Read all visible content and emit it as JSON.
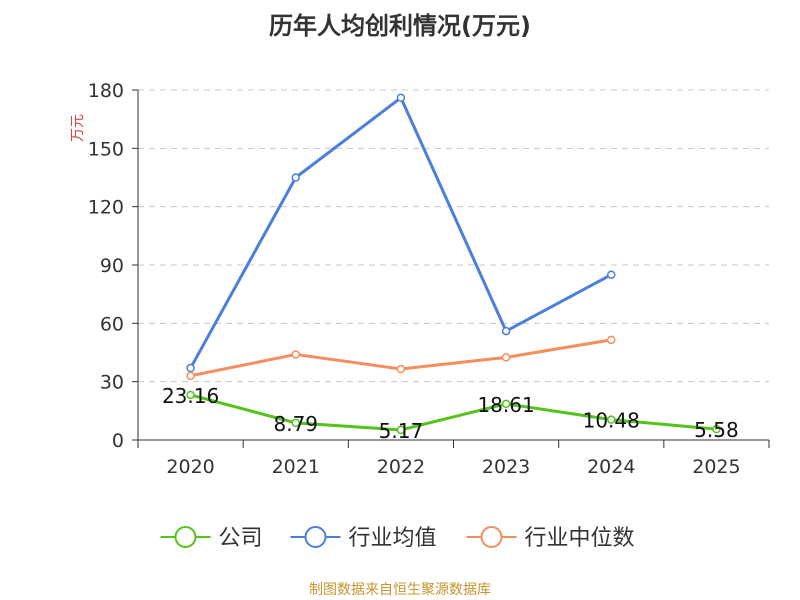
{
  "chart_data": {
    "type": "line",
    "title": "历年人均创利情况(万元)",
    "ylabel": "万元",
    "categories": [
      "2020",
      "2021",
      "2022",
      "2023",
      "2024",
      "2025"
    ],
    "ylim": [
      0,
      180
    ],
    "yticks": [
      0,
      30,
      60,
      90,
      120,
      150,
      180
    ],
    "grid": true,
    "legend_position": "bottom",
    "series": [
      {
        "name": "公司",
        "color": "#52c41a",
        "values": [
          23.16,
          8.79,
          5.17,
          18.61,
          10.48,
          5.58
        ],
        "labels": [
          "23.16",
          "8.79",
          "5.17",
          "18.61",
          "10.48",
          "5.58"
        ]
      },
      {
        "name": "行业均值",
        "color": "#4a7fdb",
        "values": [
          37,
          135,
          176,
          56,
          85,
          null
        ]
      },
      {
        "name": "行业中位数",
        "color": "#f58d5c",
        "values": [
          33,
          44,
          36.5,
          42.5,
          51.5,
          null
        ]
      }
    ]
  },
  "source": "制图数据来自恒生聚源数据库"
}
